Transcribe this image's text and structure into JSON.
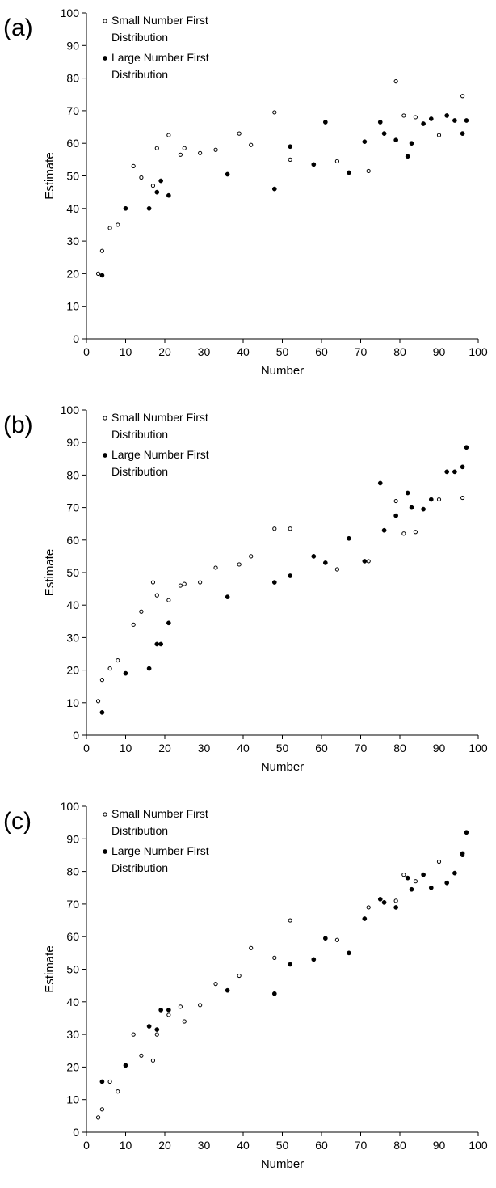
{
  "chart_data": [
    {
      "type": "scatter",
      "panel_label": "(a)",
      "xlabel": "Number",
      "ylabel": "Estimate",
      "xlim": [
        0,
        100
      ],
      "ylim": [
        0,
        100
      ],
      "xticks": [
        0,
        10,
        20,
        30,
        40,
        50,
        60,
        70,
        80,
        90,
        100
      ],
      "yticks": [
        0,
        10,
        20,
        30,
        40,
        50,
        60,
        70,
        80,
        90,
        100
      ],
      "grid": false,
      "legend_position": "top-left",
      "series": [
        {
          "name": "Small Number First Distribution",
          "marker": "open-circle",
          "points": [
            [
              3,
              20
            ],
            [
              4,
              27
            ],
            [
              6,
              34
            ],
            [
              8,
              35
            ],
            [
              12,
              53
            ],
            [
              14,
              49.5
            ],
            [
              17,
              47
            ],
            [
              18,
              58.5
            ],
            [
              21,
              62.5
            ],
            [
              24,
              56.5
            ],
            [
              25,
              58.5
            ],
            [
              29,
              57
            ],
            [
              33,
              58
            ],
            [
              39,
              63
            ],
            [
              42,
              59.5
            ],
            [
              48,
              69.5
            ],
            [
              52,
              55
            ],
            [
              64,
              54.5
            ],
            [
              72,
              51.5
            ],
            [
              79,
              79
            ],
            [
              81,
              68.5
            ],
            [
              84,
              68
            ],
            [
              90,
              62.5
            ],
            [
              96,
              74.5
            ]
          ]
        },
        {
          "name": "Large Number First Distribution",
          "marker": "filled-circle",
          "points": [
            [
              4,
              19.5
            ],
            [
              10,
              40
            ],
            [
              16,
              40
            ],
            [
              18,
              45
            ],
            [
              19,
              48.5
            ],
            [
              21,
              44
            ],
            [
              36,
              50.5
            ],
            [
              48,
              46
            ],
            [
              52,
              59
            ],
            [
              58,
              53.5
            ],
            [
              61,
              66.5
            ],
            [
              67,
              51
            ],
            [
              71,
              60.5
            ],
            [
              75,
              66.5
            ],
            [
              76,
              63
            ],
            [
              79,
              61
            ],
            [
              82,
              56
            ],
            [
              83,
              60
            ],
            [
              86,
              66
            ],
            [
              88,
              67.5
            ],
            [
              92,
              68.5
            ],
            [
              94,
              67
            ],
            [
              96,
              63
            ],
            [
              97,
              67
            ]
          ]
        }
      ]
    },
    {
      "type": "scatter",
      "panel_label": "(b)",
      "xlabel": "Number",
      "ylabel": "Estimate",
      "xlim": [
        0,
        100
      ],
      "ylim": [
        0,
        100
      ],
      "xticks": [
        0,
        10,
        20,
        30,
        40,
        50,
        60,
        70,
        80,
        90,
        100
      ],
      "yticks": [
        0,
        10,
        20,
        30,
        40,
        50,
        60,
        70,
        80,
        90,
        100
      ],
      "grid": false,
      "legend_position": "top-left",
      "series": [
        {
          "name": "Small Number First Distribution",
          "marker": "open-circle",
          "points": [
            [
              3,
              10.5
            ],
            [
              4,
              17
            ],
            [
              6,
              20.5
            ],
            [
              8,
              23
            ],
            [
              12,
              34
            ],
            [
              14,
              38
            ],
            [
              17,
              47
            ],
            [
              18,
              43
            ],
            [
              21,
              41.5
            ],
            [
              24,
              46
            ],
            [
              25,
              46.5
            ],
            [
              29,
              47
            ],
            [
              33,
              51.5
            ],
            [
              39,
              52.5
            ],
            [
              42,
              55
            ],
            [
              48,
              63.5
            ],
            [
              52,
              63.5
            ],
            [
              64,
              51
            ],
            [
              72,
              53.5
            ],
            [
              79,
              72
            ],
            [
              81,
              62
            ],
            [
              84,
              62.5
            ],
            [
              90,
              72.5
            ],
            [
              96,
              73
            ]
          ]
        },
        {
          "name": "Large Number First Distribution",
          "marker": "filled-circle",
          "points": [
            [
              4,
              7
            ],
            [
              10,
              19
            ],
            [
              16,
              20.5
            ],
            [
              18,
              28
            ],
            [
              19,
              28
            ],
            [
              21,
              34.5
            ],
            [
              36,
              42.5
            ],
            [
              48,
              47
            ],
            [
              52,
              49
            ],
            [
              58,
              55
            ],
            [
              61,
              53
            ],
            [
              67,
              60.5
            ],
            [
              71,
              53.5
            ],
            [
              75,
              77.5
            ],
            [
              76,
              63
            ],
            [
              79,
              67.5
            ],
            [
              82,
              74.5
            ],
            [
              83,
              70
            ],
            [
              86,
              69.5
            ],
            [
              88,
              72.5
            ],
            [
              92,
              81
            ],
            [
              94,
              81
            ],
            [
              96,
              82.5
            ],
            [
              97,
              88.5
            ]
          ]
        }
      ]
    },
    {
      "type": "scatter",
      "panel_label": "(c)",
      "xlabel": "Number",
      "ylabel": "Estimate",
      "xlim": [
        0,
        100
      ],
      "ylim": [
        0,
        100
      ],
      "xticks": [
        0,
        10,
        20,
        30,
        40,
        50,
        60,
        70,
        80,
        90,
        100
      ],
      "yticks": [
        0,
        10,
        20,
        30,
        40,
        50,
        60,
        70,
        80,
        90,
        100
      ],
      "grid": false,
      "legend_position": "top-left",
      "series": [
        {
          "name": "Small Number First Distribution",
          "marker": "open-circle",
          "points": [
            [
              3,
              4.5
            ],
            [
              4,
              7
            ],
            [
              6,
              15.5
            ],
            [
              8,
              12.5
            ],
            [
              12,
              30
            ],
            [
              14,
              23.5
            ],
            [
              17,
              22
            ],
            [
              18,
              30
            ],
            [
              21,
              36
            ],
            [
              24,
              38.5
            ],
            [
              25,
              34
            ],
            [
              29,
              39
            ],
            [
              33,
              45.5
            ],
            [
              39,
              48
            ],
            [
              42,
              56.5
            ],
            [
              48,
              53.5
            ],
            [
              52,
              65
            ],
            [
              64,
              59
            ],
            [
              72,
              69
            ],
            [
              79,
              71
            ],
            [
              81,
              79
            ],
            [
              84,
              77
            ],
            [
              90,
              83
            ],
            [
              96,
              85
            ]
          ]
        },
        {
          "name": "Large Number First Distribution",
          "marker": "filled-circle",
          "points": [
            [
              4,
              15.5
            ],
            [
              10,
              20.5
            ],
            [
              16,
              32.5
            ],
            [
              18,
              31.5
            ],
            [
              19,
              37.5
            ],
            [
              21,
              37.5
            ],
            [
              36,
              43.5
            ],
            [
              48,
              42.5
            ],
            [
              52,
              51.5
            ],
            [
              58,
              53
            ],
            [
              61,
              59.5
            ],
            [
              67,
              55
            ],
            [
              71,
              65.5
            ],
            [
              75,
              71.5
            ],
            [
              76,
              70.5
            ],
            [
              79,
              69
            ],
            [
              82,
              78
            ],
            [
              83,
              74.5
            ],
            [
              86,
              79
            ],
            [
              88,
              75
            ],
            [
              92,
              76.5
            ],
            [
              94,
              79.5
            ],
            [
              96,
              85.5
            ],
            [
              97,
              92
            ]
          ]
        }
      ]
    }
  ]
}
